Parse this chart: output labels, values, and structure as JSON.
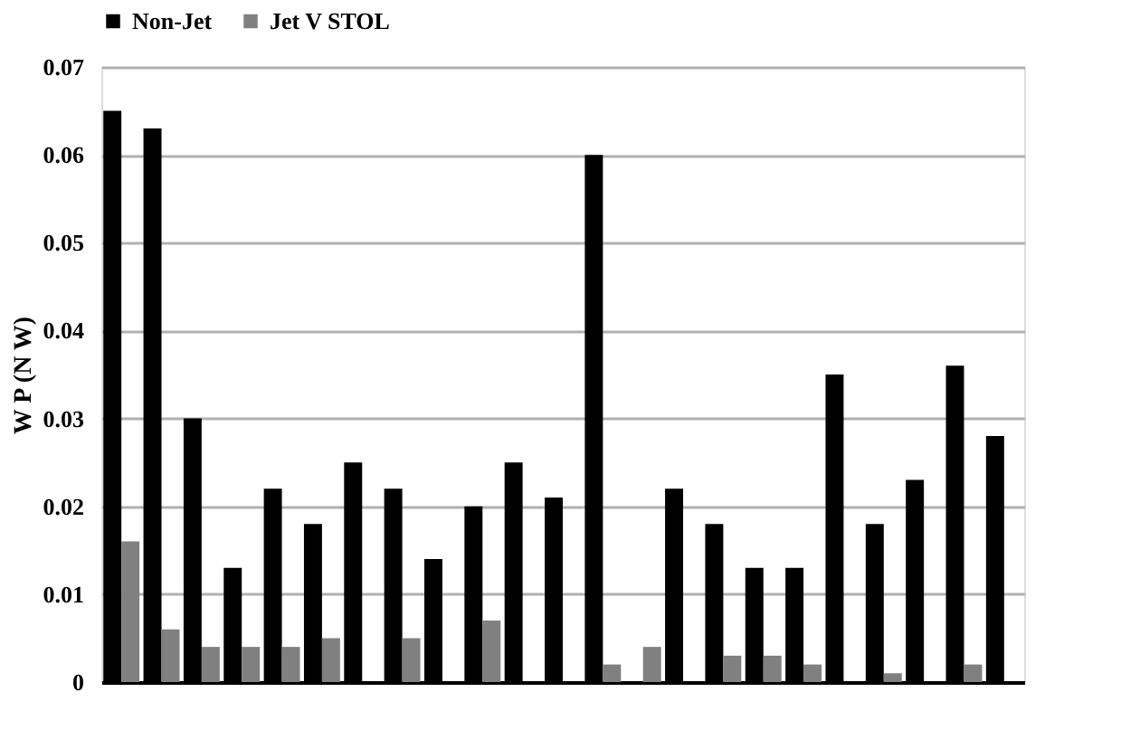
{
  "chart_data": {
    "type": "bar",
    "ylabel": "W P (N W)",
    "categories": [
      null,
      null,
      null,
      null,
      null,
      null,
      null,
      null,
      null,
      null,
      null,
      null,
      null,
      null,
      null,
      null,
      null,
      null,
      null,
      null,
      null,
      null,
      null
    ],
    "series": [
      {
        "name": "Non-Jet",
        "color": "#000000",
        "values": [
          0.065,
          0.063,
          0.03,
          0.013,
          0.022,
          0.018,
          0.025,
          0.022,
          0.014,
          0.02,
          0.025,
          0.021,
          0.06,
          null,
          0.022,
          0.018,
          0.013,
          0.013,
          0.035,
          0.018,
          0.023,
          0.036,
          0.028
        ]
      },
      {
        "name": "Jet V STOL",
        "color": "#808080",
        "values": [
          0.016,
          0.006,
          0.004,
          0.004,
          0.004,
          0.005,
          null,
          0.005,
          null,
          0.007,
          null,
          null,
          0.002,
          0.004,
          null,
          0.003,
          0.003,
          0.002,
          null,
          0.001,
          null,
          0.002,
          null
        ]
      }
    ],
    "ylim": [
      0,
      0.07
    ],
    "yticks": [
      0,
      0.01,
      0.02,
      0.03,
      0.04,
      0.05,
      0.06,
      0.07
    ],
    "grid": "y",
    "legend": "top",
    "tick_labels": "y"
  }
}
